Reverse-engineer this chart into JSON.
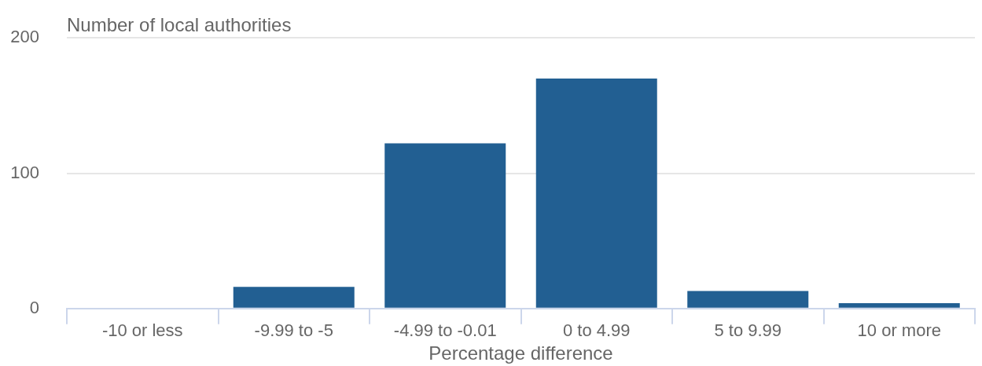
{
  "chart_data": {
    "type": "bar",
    "ylabel": "Number of local authorities",
    "xlabel": "Percentage difference",
    "categories": [
      "-10 or less",
      "-9.99 to -5",
      "-4.99 to -0.01",
      "0 to 4.99",
      "5 to 9.99",
      "10 or more"
    ],
    "values": [
      0,
      16,
      122,
      170,
      13,
      4
    ],
    "color": "#225f92",
    "ylim": [
      0,
      200
    ],
    "yticks": [
      0,
      100,
      200
    ],
    "grid": "y",
    "legend": false
  }
}
